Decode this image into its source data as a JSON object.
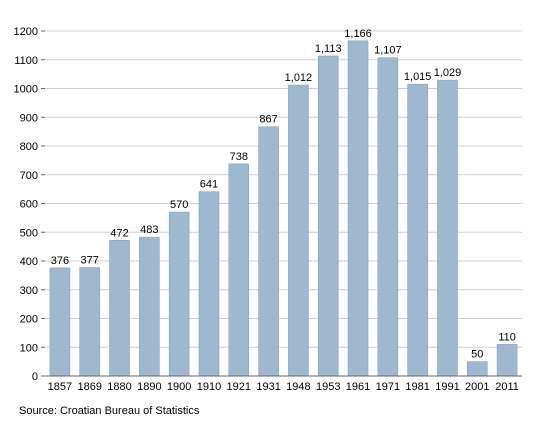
{
  "chart_data": {
    "type": "bar",
    "categories": [
      "1857",
      "1869",
      "1880",
      "1890",
      "1900",
      "1910",
      "1921",
      "1931",
      "1948",
      "1953",
      "1961",
      "1971",
      "1981",
      "1991",
      "2001",
      "2011"
    ],
    "values": [
      376,
      377,
      472,
      483,
      570,
      641,
      738,
      867,
      1012,
      1113,
      1166,
      1107,
      1015,
      1029,
      50,
      110
    ],
    "value_labels": [
      "376",
      "377",
      "472",
      "483",
      "570",
      "641",
      "738",
      "867",
      "1,012",
      "1,113",
      "1,166",
      "1,107",
      "1,015",
      "1,029",
      "50",
      "110"
    ],
    "y_ticks": [
      "0",
      "100",
      "200",
      "300",
      "400",
      "500",
      "600",
      "700",
      "800",
      "900",
      "1000",
      "1100",
      "1200"
    ],
    "ylim": [
      0,
      1200
    ],
    "grid": true,
    "legend": "none",
    "bar_color": "#9fb7cf",
    "bar_stroke": "#8aa3bc",
    "grid_color": "#d0d0d0"
  },
  "source": "Source: Croatian Bureau of Statistics"
}
